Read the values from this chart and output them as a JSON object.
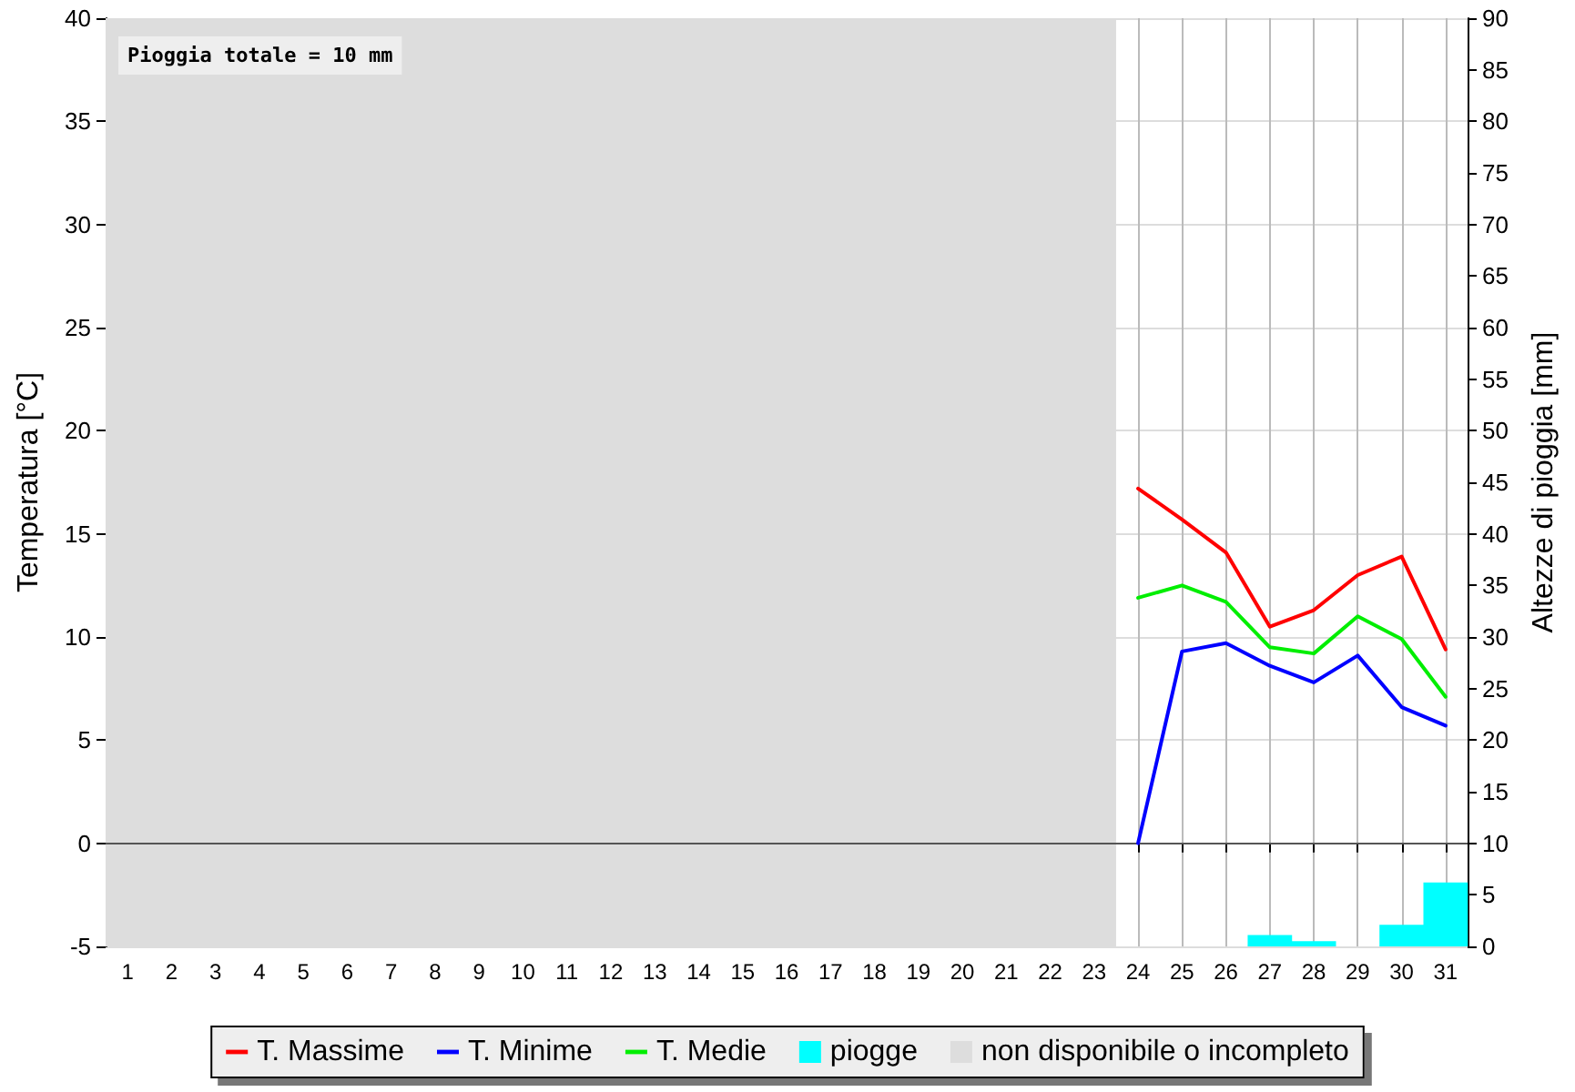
{
  "chart_data": {
    "type": "line",
    "ylabel": "Temperatura [°C]",
    "y2label": "Altezze di pioggia [mm]",
    "annotations": [
      "Pioggia totale = 10 mm"
    ],
    "x": [
      24,
      25,
      26,
      27,
      28,
      29,
      30,
      31
    ],
    "xlim": [
      0.5,
      31.5
    ],
    "xticks": [
      1,
      2,
      3,
      4,
      5,
      6,
      7,
      8,
      9,
      10,
      11,
      12,
      13,
      14,
      15,
      16,
      17,
      18,
      19,
      20,
      21,
      22,
      23,
      24,
      25,
      26,
      27,
      28,
      29,
      30,
      31
    ],
    "ylim": [
      -5,
      40
    ],
    "yticks": [
      -5,
      0,
      5,
      10,
      15,
      20,
      25,
      30,
      35,
      40
    ],
    "y2lim": [
      0,
      90
    ],
    "y2ticks": [
      0,
      5,
      10,
      15,
      20,
      25,
      30,
      35,
      40,
      45,
      50,
      55,
      60,
      65,
      70,
      75,
      80,
      85,
      90
    ],
    "series": [
      {
        "name": "T. Massime",
        "color": "#ff0000",
        "values": [
          17.2,
          15.7,
          14.1,
          10.5,
          11.3,
          13.0,
          13.9,
          9.4
        ]
      },
      {
        "name": "T. Minime",
        "color": "#0000ff",
        "values": [
          0,
          9.3,
          9.7,
          8.6,
          7.8,
          9.1,
          6.6,
          5.7
        ]
      },
      {
        "name": "T. Medie",
        "color": "#00ee00",
        "values": [
          11.9,
          12.5,
          11.7,
          9.5,
          9.2,
          11.0,
          9.9,
          7.1
        ]
      },
      {
        "name": "piogge",
        "type": "bar",
        "axis": "y2",
        "color": "#00ffff",
        "values": [
          0,
          0,
          0,
          1.1,
          0.5,
          0,
          2.1,
          6.2
        ]
      }
    ],
    "ref_lines": [
      {
        "axis": "y",
        "value": 0,
        "color": "#555555"
      }
    ],
    "bands": [
      {
        "axis": "x",
        "from": 0.5,
        "to": 23.5,
        "label": "non disponibile o incompleto",
        "color": "#dddddd"
      }
    ],
    "grid": true,
    "legend": "bottom",
    "marker": "none",
    "line_style": "solid"
  }
}
